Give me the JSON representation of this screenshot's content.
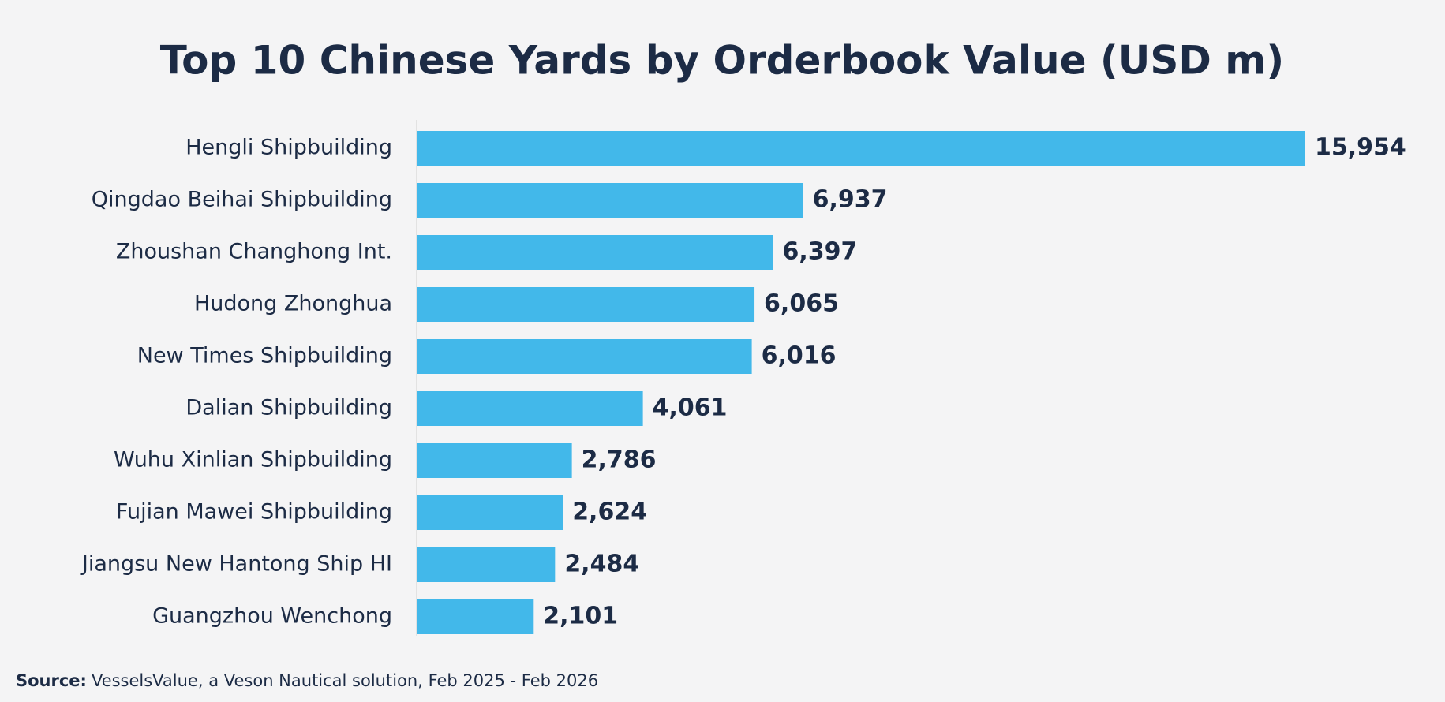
{
  "chart_data": {
    "type": "hbar",
    "title": "Top 10 Chinese Yards by Orderbook Value (USD m)",
    "categories": [
      "Hengli Shipbuilding",
      "Qingdao Beihai Shipbuilding",
      "Zhoushan Changhong Int.",
      "Hudong Zhonghua",
      "New Times Shipbuilding",
      "Dalian Shipbuilding",
      "Wuhu Xinlian Shipbuilding",
      "Fujian Mawei Shipbuilding",
      "Jiangsu New Hantong Ship HI",
      "Guangzhou Wenchong"
    ],
    "values": [
      15954,
      6937,
      6397,
      6065,
      6016,
      4061,
      2786,
      2624,
      2484,
      2101
    ],
    "value_labels": [
      "15,954",
      "6,937",
      "6,397",
      "6,065",
      "6,016",
      "4,061",
      "2,786",
      "2,624",
      "2,484",
      "2,101"
    ],
    "color": "#42b8ea",
    "source_label": "Source:",
    "source_text": "VesselsValue, a Veson Nautical solution, Feb 2025 - Feb 2026"
  }
}
